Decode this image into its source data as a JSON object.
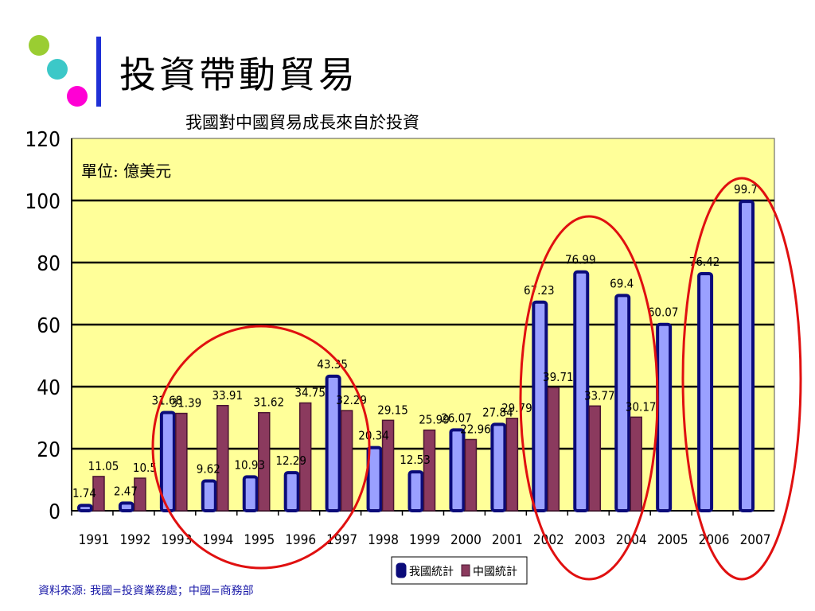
{
  "slide": {
    "title": "投資帶動貿易",
    "source": "資料來源: 我國=投資業務處；中國=商務部",
    "accent_colors": [
      "#9acd32",
      "#3cc8c8",
      "#ff00d4",
      "#1f30d6"
    ]
  },
  "chart_data": {
    "type": "bar",
    "title": "我國對中國貿易成長來自於投資",
    "unit_note": "單位: 億美元",
    "categories": [
      "1991",
      "1992",
      "1993",
      "1994",
      "1995",
      "1996",
      "1997",
      "1998",
      "1999",
      "2000",
      "2001",
      "2002",
      "2003",
      "2004",
      "2005",
      "2006",
      "2007"
    ],
    "series": [
      {
        "name": "我國統計",
        "color": "#9aa0ff",
        "border": "#0b0b7a",
        "values": [
          1.74,
          2.47,
          31.68,
          9.62,
          10.93,
          12.29,
          43.35,
          20.34,
          12.53,
          26.07,
          27.84,
          67.23,
          76.99,
          69.4,
          60.07,
          76.42,
          99.7
        ]
      },
      {
        "name": "中國統計",
        "color": "#8b3a5e",
        "border": "#4a1530",
        "values": [
          11.05,
          10.5,
          31.39,
          33.91,
          31.62,
          34.75,
          32.29,
          29.15,
          25.99,
          22.96,
          29.79,
          39.71,
          33.77,
          30.17,
          null,
          null,
          null
        ]
      }
    ],
    "value_labels": {
      "我國統計": [
        "1.74",
        "2.47",
        "31.68",
        "9.62",
        "10.93",
        "12.29",
        "43.35",
        "20.34",
        "12.53",
        "26.07",
        "27.84",
        "67.23",
        "76.99",
        "69.4",
        "60.07",
        "76.42",
        "99.7"
      ],
      "中國統計": [
        "11.05",
        "10.5",
        "31.39",
        "33.91",
        "31.62",
        "34.75",
        "32.29",
        "29.15",
        "25.99",
        "22.96",
        "29.79",
        "39.71",
        "33.77",
        "30.17",
        "",
        "",
        ""
      ]
    },
    "ylim": [
      0,
      120
    ],
    "yticks": [
      0,
      20,
      40,
      60,
      80,
      100,
      120
    ],
    "grid": true,
    "legend_position": "bottom-center",
    "plot_bg": "#ffff99"
  }
}
